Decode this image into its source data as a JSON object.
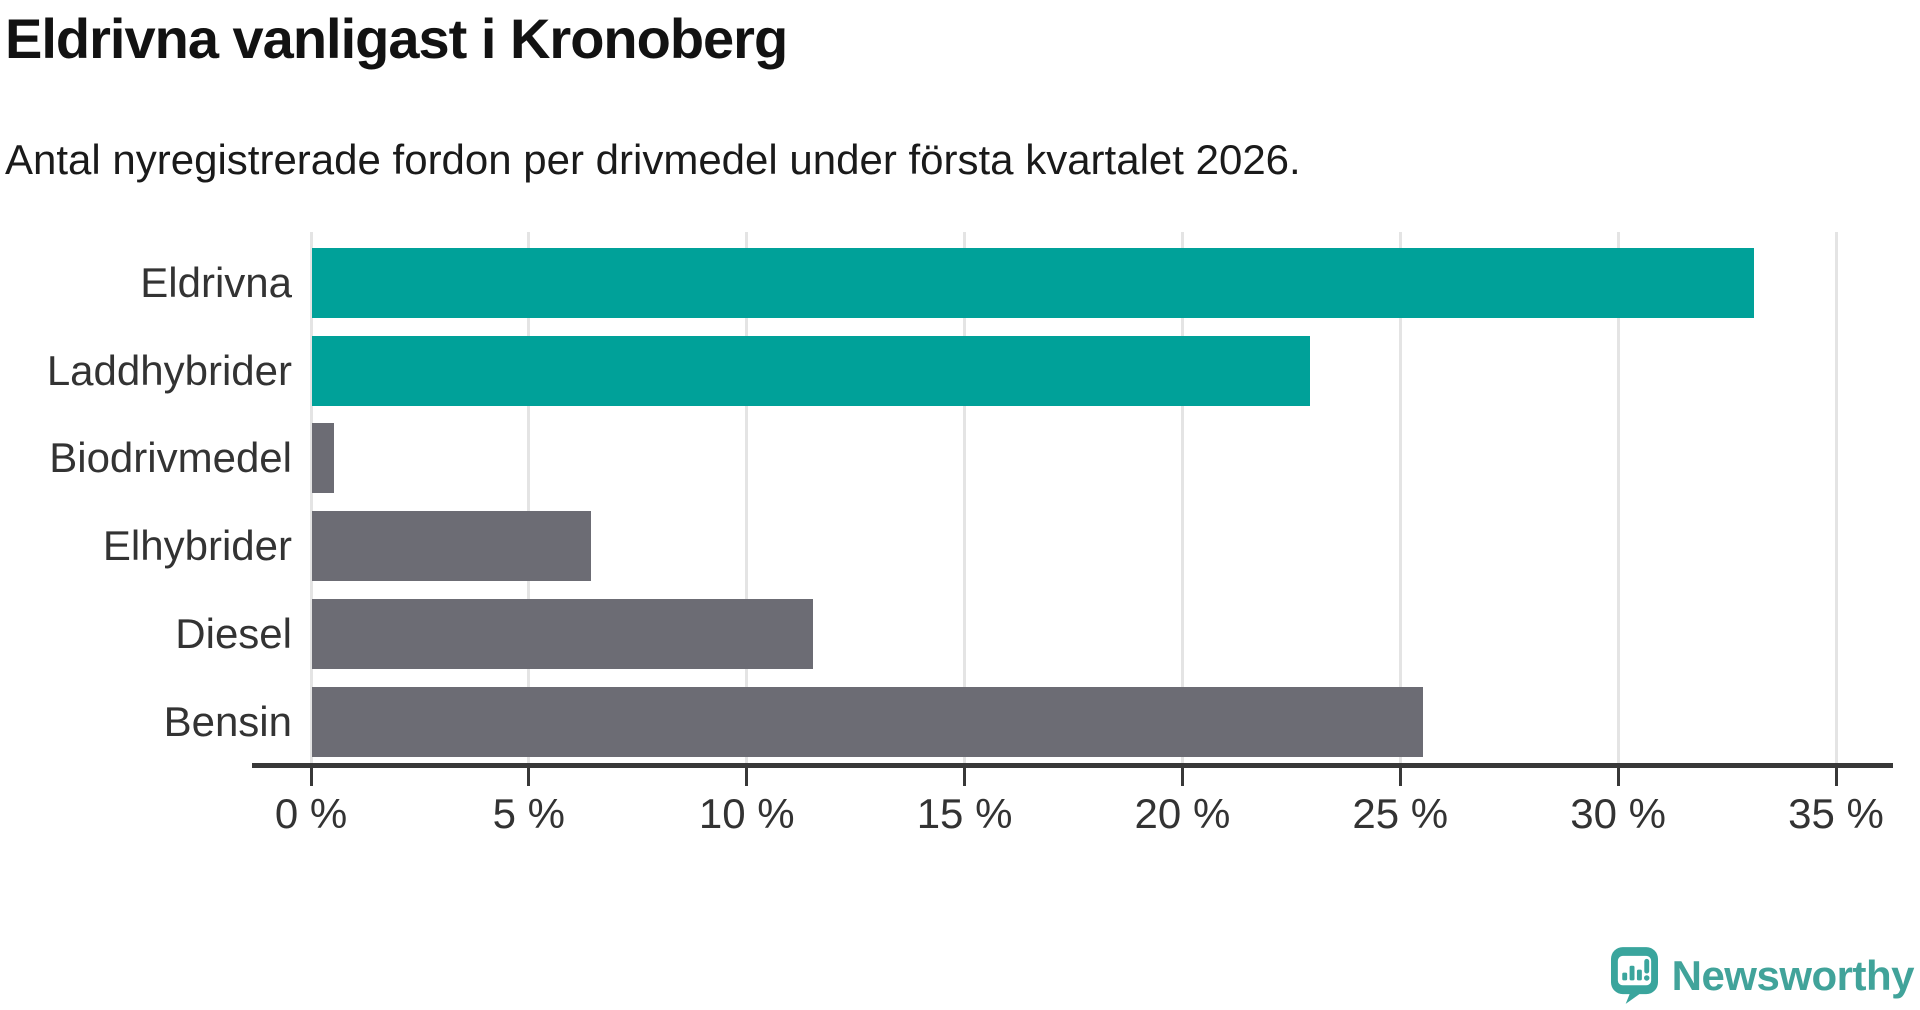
{
  "header": {
    "title": "Eldrivna vanligast i Kronoberg",
    "subtitle": "Antal nyregistrerade fordon per drivmedel under första kvartalet 2026."
  },
  "chart_data": {
    "type": "bar",
    "orientation": "horizontal",
    "title": "Eldrivna vanligast i Kronoberg",
    "subtitle": "Antal nyregistrerade fordon per drivmedel under första kvartalet 2026.",
    "categories": [
      "Eldrivna",
      "Laddhybrider",
      "Biodrivmedel",
      "Elhybrider",
      "Diesel",
      "Bensin"
    ],
    "values": [
      33.1,
      22.9,
      0.5,
      6.4,
      11.5,
      25.5
    ],
    "unit": "%",
    "bar_colors": [
      "#00a199",
      "#00a199",
      "#6c6c74",
      "#6c6c74",
      "#6c6c74",
      "#6c6c74"
    ],
    "highlight_color": "#00a199",
    "default_color": "#6c6c74",
    "xlabel": "",
    "ylabel": "",
    "xlim": [
      0,
      35
    ],
    "x_ticks": [
      {
        "value": 0,
        "label": "0 %"
      },
      {
        "value": 5,
        "label": "5 %"
      },
      {
        "value": 10,
        "label": "10 %"
      },
      {
        "value": 15,
        "label": "15 %"
      },
      {
        "value": 20,
        "label": "20 %"
      },
      {
        "value": 25,
        "label": "25 %"
      },
      {
        "value": 30,
        "label": "30 %"
      },
      {
        "value": 35,
        "label": "35 %"
      }
    ],
    "grid": true,
    "gridline_color": "#e4e4e4",
    "axis_color": "#383838",
    "label_color": "#333333",
    "legend": "none",
    "value_labels": "none"
  },
  "footer": {
    "brand_name": "Newsworthy",
    "brand_color": "#41a39a",
    "logo_icon": "newsworthy-speech-bubble-barchart-icon"
  }
}
